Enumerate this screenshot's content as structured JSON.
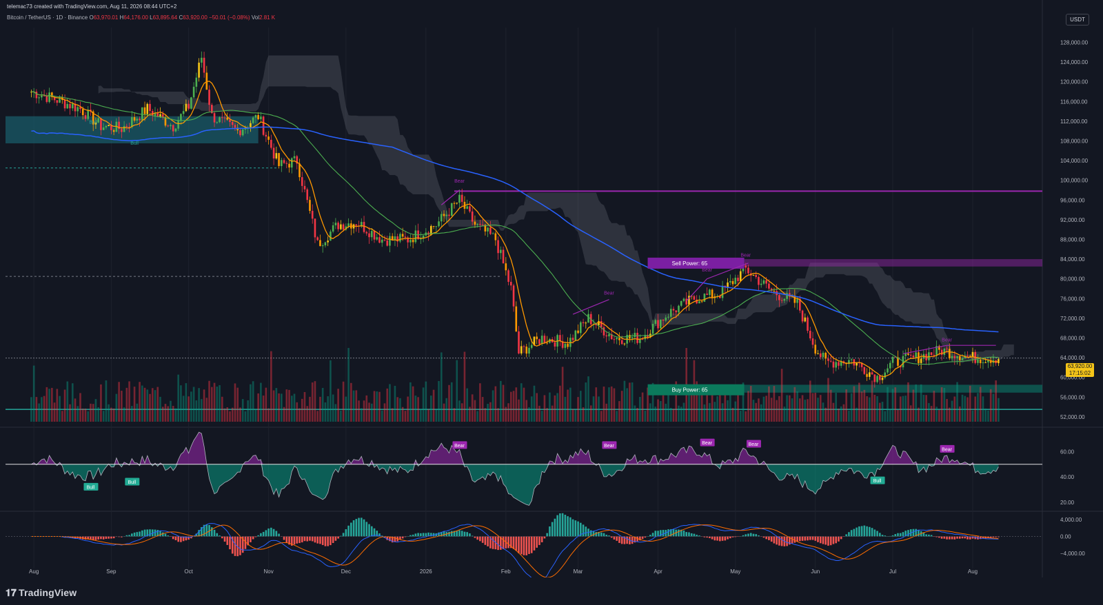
{
  "header": {
    "created_by": "telemac73 created with TradingView.com, Aug 11, 2026 08:44 UTC+2",
    "symbol": "Bitcoin / TetherUS · 1D · Binance",
    "open_label": "O",
    "open": "63,970.01",
    "high_label": "H",
    "high": "64,176.00",
    "low_label": "L",
    "low": "63,895.64",
    "close_label": "C",
    "close": "63,920.00",
    "change": "−50.01 (−0.08%)",
    "vol_label": "Vol",
    "vol": "2.81 K",
    "currency": "USDT"
  },
  "price_badge": {
    "price": "63,920.00",
    "countdown": "17:15:02"
  },
  "footer": {
    "brand": "TradingView"
  },
  "colors": {
    "up": "#089981",
    "down": "#f23645",
    "purple": "#9c27b0",
    "blue": "#2962ff",
    "green_line": "#26a69a",
    "background": "#131722"
  },
  "chart_data": [
    {
      "type": "candlestick",
      "title": "Bitcoin / TetherUS · 1D · Binance",
      "y_axis_ticks": [
        "128,000.00",
        "124,000.00",
        "120,000.00",
        "116,000.00",
        "112,000.00",
        "108,000.00",
        "104,000.00",
        "100,000.00",
        "96,000.00",
        "92,000.00",
        "88,000.00",
        "84,000.00",
        "80,000.00",
        "76,000.00",
        "72,000.00",
        "68,000.00",
        "64,000.00",
        "60,000.00",
        "56,000.00",
        "52,000.00"
      ],
      "x_axis_ticks": [
        "Aug",
        "Sep",
        "Oct",
        "Nov",
        "Dec",
        "2026",
        "Feb",
        "Mar",
        "Apr",
        "May",
        "Jun",
        "Jul",
        "Aug"
      ],
      "ylim": [
        51000,
        131000
      ],
      "close_series": [
        [
          "2025-08-01",
          118000
        ],
        [
          "2025-08-10",
          116500
        ],
        [
          "2025-08-20",
          114500
        ],
        [
          "2025-08-28",
          111000
        ],
        [
          "2025-09-05",
          110500
        ],
        [
          "2025-09-15",
          114500
        ],
        [
          "2025-09-25",
          111000
        ],
        [
          "2025-10-01",
          115000
        ],
        [
          "2025-10-06",
          125000
        ],
        [
          "2025-10-10",
          113000
        ],
        [
          "2025-10-20",
          110000
        ],
        [
          "2025-10-28",
          113000
        ],
        [
          "2025-11-05",
          103000
        ],
        [
          "2025-11-12",
          104000
        ],
        [
          "2025-11-20",
          87000
        ],
        [
          "2025-11-28",
          91000
        ],
        [
          "2025-12-05",
          91500
        ],
        [
          "2025-12-15",
          88000
        ],
        [
          "2025-12-25",
          88000
        ],
        [
          "2026-01-05",
          91000
        ],
        [
          "2026-01-14",
          96000
        ],
        [
          "2026-01-20",
          91000
        ],
        [
          "2026-01-28",
          88000
        ],
        [
          "2026-02-03",
          78000
        ],
        [
          "2026-02-06",
          65000
        ],
        [
          "2026-02-15",
          68000
        ],
        [
          "2026-02-25",
          67000
        ],
        [
          "2026-03-05",
          72000
        ],
        [
          "2026-03-15",
          68000
        ],
        [
          "2026-03-25",
          68000
        ],
        [
          "2026-04-05",
          73000
        ],
        [
          "2026-04-15",
          76000
        ],
        [
          "2026-04-25",
          77000
        ],
        [
          "2026-05-05",
          82000
        ],
        [
          "2026-05-15",
          77500
        ],
        [
          "2026-05-25",
          75000
        ],
        [
          "2026-06-01",
          66000
        ],
        [
          "2026-06-05",
          63000
        ],
        [
          "2026-06-15",
          63500
        ],
        [
          "2026-06-25",
          60000
        ],
        [
          "2026-07-01",
          63000
        ],
        [
          "2026-07-10",
          64000
        ],
        [
          "2026-07-20",
          65500
        ],
        [
          "2026-08-01",
          64000
        ],
        [
          "2026-08-11",
          63920
        ]
      ],
      "annotations": [
        {
          "label": "Sell Power: 65"
        },
        {
          "label": "Buy Power: 65"
        },
        {
          "label": "Bull"
        },
        {
          "label": "Bull"
        },
        {
          "label": "Bear"
        },
        {
          "label": "Bear"
        },
        {
          "label": "Bear"
        },
        {
          "label": "Bear"
        },
        {
          "label": "Bear"
        }
      ],
      "horizontal_levels": [
        97800,
        84000,
        82500,
        58500,
        56900,
        53500
      ]
    },
    {
      "type": "line",
      "name": "oscillator",
      "y_axis_ticks": [
        "60.00",
        "40.00",
        "20.00"
      ],
      "ylim": [
        15,
        75
      ],
      "signals": [
        {
          "label": "Bull"
        },
        {
          "label": "Bull"
        },
        {
          "label": "Bear"
        },
        {
          "label": "Bear"
        },
        {
          "label": "Bear"
        },
        {
          "label": "Bear"
        },
        {
          "label": "Bull"
        },
        {
          "label": "Bear"
        }
      ]
    },
    {
      "type": "line",
      "name": "macd",
      "y_axis_ticks": [
        "4,000.00",
        "0.00",
        "−4,000.00"
      ],
      "ylim": [
        -5500,
        5000
      ]
    }
  ]
}
